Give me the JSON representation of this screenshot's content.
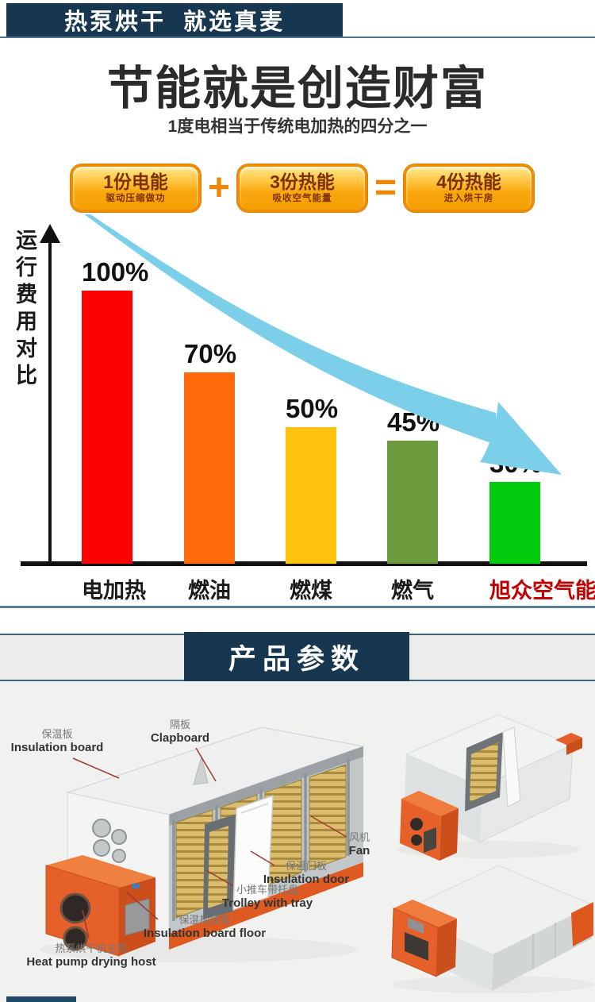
{
  "header": {
    "ribbon_text": "热泵烘干  就选真麦",
    "ribbon_color": "#17364f"
  },
  "hero": {
    "title": "节能就是创造财富",
    "subtitle": "1度电相当于传统电加热的四分之一"
  },
  "formula": {
    "plus": "+",
    "equals": "=",
    "badges": [
      {
        "title": "1份电能",
        "subtitle": "驱动压缩做功"
      },
      {
        "title": "3份热能",
        "subtitle": "吸收空气能量"
      },
      {
        "title": "4份热能",
        "subtitle": "进入烘干房"
      }
    ]
  },
  "chart_data": {
    "type": "bar",
    "title": "运行费用对比",
    "ylabel": "运行费用对比",
    "xlabel": "",
    "categories": [
      "电加热",
      "燃油",
      "燃煤",
      "燃气",
      "旭众空气能"
    ],
    "values": [
      100,
      70,
      50,
      45,
      30
    ],
    "value_labels": [
      "100%",
      "70%",
      "50%",
      "45%",
      "30%"
    ],
    "bar_colors": [
      "#fe0202",
      "#ff6a0c",
      "#ffc30f",
      "#6d9b3d",
      "#02cb0e"
    ],
    "category_colors": [
      "#1a1a1a",
      "#1a1a1a",
      "#1a1a1a",
      "#1a1a1a",
      "#c00000"
    ],
    "ylim": [
      0,
      100
    ],
    "grid": false,
    "legend_position": "none",
    "trend_arrow": {
      "direction": "down-right",
      "color": "#7bcfe9"
    }
  },
  "product_section": {
    "title": "产品参数"
  },
  "diagram": {
    "labels": [
      {
        "cn": "保温板",
        "en": "Insulation board"
      },
      {
        "cn": "隔板",
        "en": "Clapboard"
      },
      {
        "cn": "风机",
        "en": "Fan"
      },
      {
        "cn": "保温门板",
        "en": "Insulation door"
      },
      {
        "cn": "小推车带托盘",
        "en": "Trolley with tray"
      },
      {
        "cn": "保温板底板",
        "en": "Insulation board floor"
      },
      {
        "cn": "热泵烘干机主机",
        "en": "Heat pump drying host"
      }
    ],
    "leader_line_color": "#a03a33"
  }
}
